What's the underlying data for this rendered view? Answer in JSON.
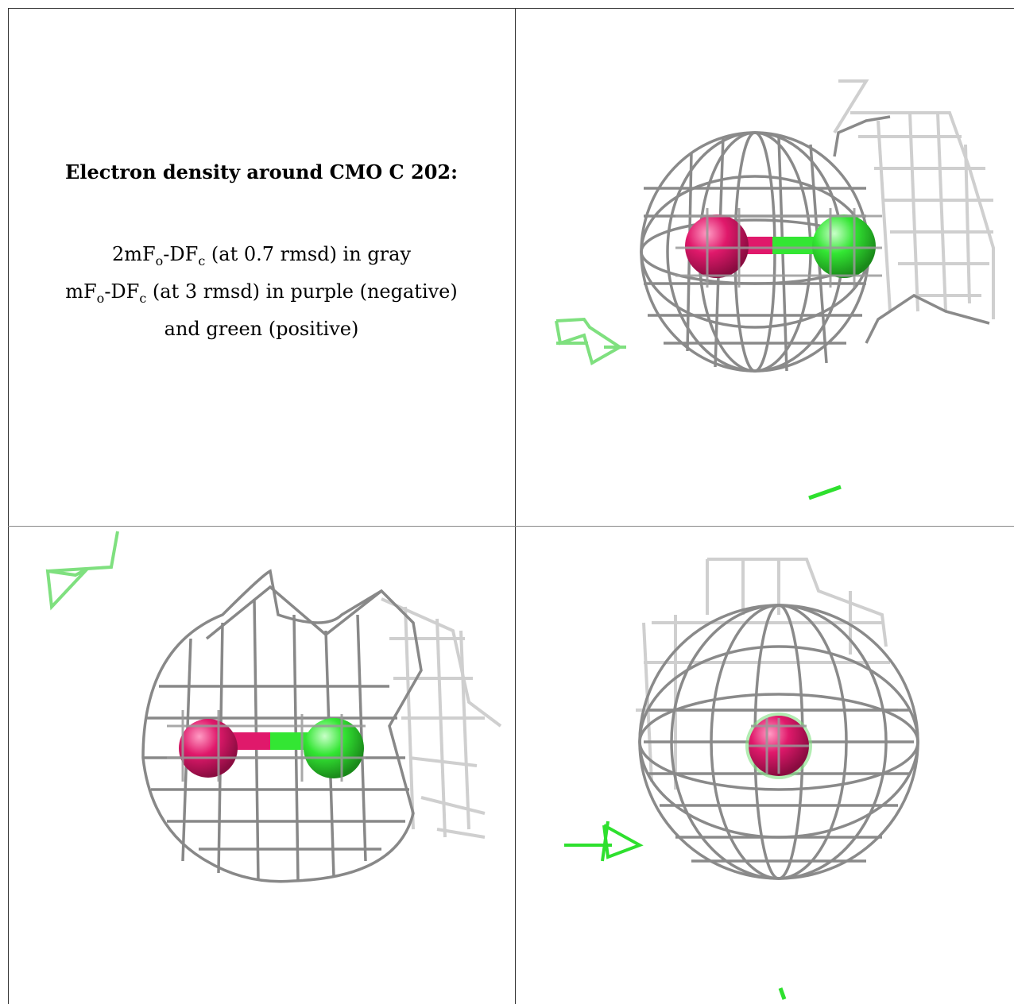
{
  "legend": {
    "title": "Electron density around CMO C 202:",
    "line1": {
      "a": "2mF",
      "s1": "o",
      "b": "-DF",
      "s2": "c",
      "c": " (at 0.7 rmsd) in gray"
    },
    "line2": {
      "a": "mF",
      "s1": "o",
      "b": "-DF",
      "s2": "c",
      "c": " (at 3 rmsd) in purple (negative)"
    },
    "line3": "and green (positive)"
  },
  "colors": {
    "mesh_dark": "#6e6e6e",
    "mesh_light": "#c8c8c8",
    "oxygen": "#e0196b",
    "carbon": "#33e633",
    "positive_density": "#2ee02e",
    "border": "#333333"
  },
  "views": [
    {
      "name": "view-top-right",
      "molecule": "CMO C 202"
    },
    {
      "name": "view-bottom-left",
      "molecule": "CMO C 202"
    },
    {
      "name": "view-bottom-right",
      "molecule": "CMO C 202"
    }
  ]
}
